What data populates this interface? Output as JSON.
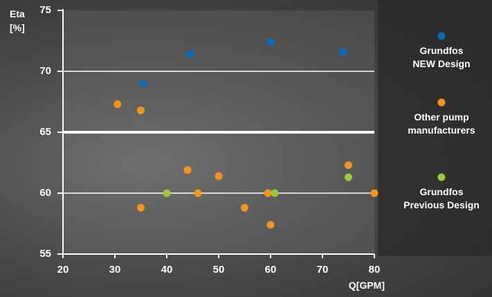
{
  "chart_data": {
    "type": "scatter",
    "x_label": "Q[GPM]",
    "y_label": "Eta [%]",
    "xlim": [
      20,
      80
    ],
    "xticks": [
      20,
      30,
      40,
      50,
      60,
      70,
      80
    ],
    "ylim": [
      55,
      75
    ],
    "yticks": [
      55,
      60,
      65,
      70,
      75
    ],
    "grid": true,
    "legend": "right",
    "series": [
      {
        "name": "Grundfos NEW Design",
        "color": "#0b6cb8",
        "x": [
          35.5,
          44.5,
          60,
          74
        ],
        "values": [
          69,
          71.4,
          72.4,
          71.6
        ]
      },
      {
        "name": "Other pump manufacturers",
        "color": "#f39518",
        "x": [
          30.5,
          35,
          44,
          46,
          50,
          35,
          55,
          59.5,
          60,
          75,
          80
        ],
        "values": [
          67.3,
          66.8,
          61.9,
          60,
          61.4,
          58.8,
          58.8,
          60,
          57.4,
          62.3,
          60
        ]
      },
      {
        "name": "Grundfos Previous Design",
        "color": "#9cc83a",
        "x": [
          40,
          60.8,
          75
        ],
        "values": [
          60,
          60,
          61.3
        ]
      }
    ]
  }
}
